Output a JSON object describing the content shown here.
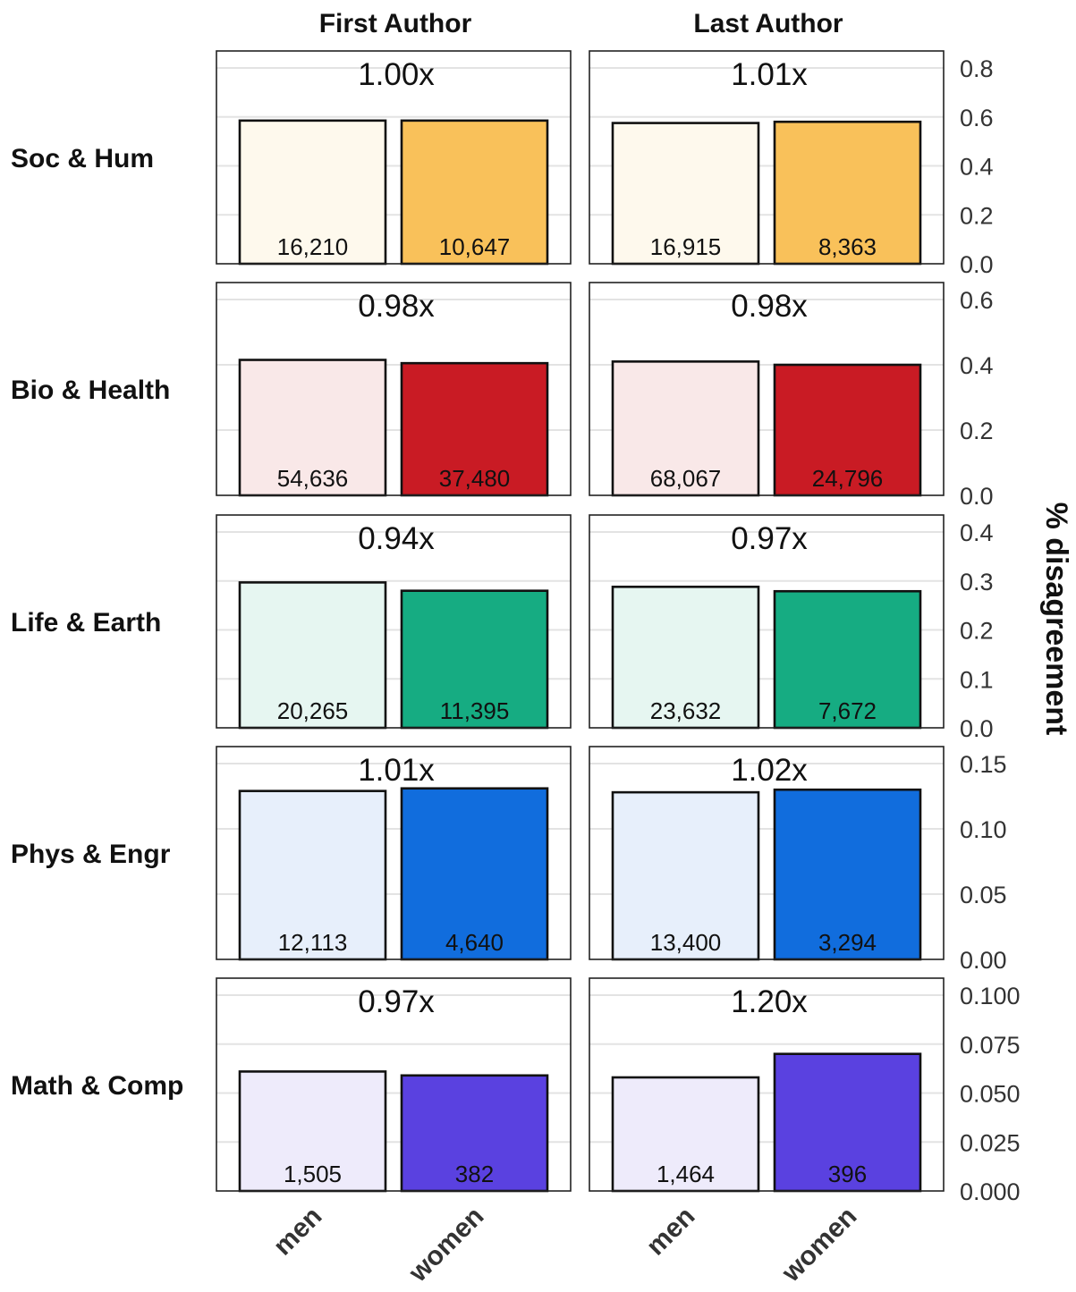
{
  "chart_data": {
    "type": "bar",
    "ylabel": "% disagreement",
    "columns": [
      "First Author",
      "Last Author"
    ],
    "categories": [
      "men",
      "women"
    ],
    "panels": [
      {
        "field": "Soc & Hum",
        "color": "#F9C15A",
        "light_color": "#FEF9ED",
        "ylim": [
          0,
          0.8
        ],
        "yticks": [
          "0.0",
          "0.2",
          "0.4",
          "0.6",
          "0.8"
        ],
        "cells": [
          {
            "column": "First Author",
            "ratio": "1.00x",
            "values": [
              0.585,
              0.585
            ],
            "counts": [
              "16,210",
              "10,647"
            ]
          },
          {
            "column": "Last Author",
            "ratio": "1.01x",
            "values": [
              0.575,
              0.58
            ],
            "counts": [
              "16,915",
              "8,363"
            ]
          }
        ]
      },
      {
        "field": "Bio & Health",
        "color": "#C91B24",
        "light_color": "#F9E8E8",
        "ylim": [
          0,
          0.6
        ],
        "yticks": [
          "0.0",
          "0.2",
          "0.4",
          "0.6"
        ],
        "cells": [
          {
            "column": "First Author",
            "ratio": "0.98x",
            "values": [
              0.415,
              0.405
            ],
            "counts": [
              "54,636",
              "37,480"
            ]
          },
          {
            "column": "Last Author",
            "ratio": "0.98x",
            "values": [
              0.41,
              0.4
            ],
            "counts": [
              "68,067",
              "24,796"
            ]
          }
        ]
      },
      {
        "field": "Life & Earth",
        "color": "#16AC82",
        "light_color": "#E6F6F1",
        "ylim": [
          0,
          0.4
        ],
        "yticks": [
          "0.0",
          "0.1",
          "0.2",
          "0.3",
          "0.4"
        ],
        "cells": [
          {
            "column": "First Author",
            "ratio": "0.94x",
            "values": [
              0.297,
              0.28
            ],
            "counts": [
              "20,265",
              "11,395"
            ]
          },
          {
            "column": "Last Author",
            "ratio": "0.97x",
            "values": [
              0.288,
              0.279
            ],
            "counts": [
              "23,632",
              "7,672"
            ]
          }
        ]
      },
      {
        "field": "Phys & Engr",
        "color": "#116DDD",
        "light_color": "#E7EFFB",
        "ylim": [
          0,
          0.15
        ],
        "yticks": [
          "0.00",
          "0.05",
          "0.10",
          "0.15"
        ],
        "cells": [
          {
            "column": "First Author",
            "ratio": "1.01x",
            "values": [
              0.129,
              0.131
            ],
            "counts": [
              "12,113",
              "4,640"
            ]
          },
          {
            "column": "Last Author",
            "ratio": "1.02x",
            "values": [
              0.128,
              0.13
            ],
            "counts": [
              "13,400",
              "3,294"
            ]
          }
        ]
      },
      {
        "field": "Math & Comp",
        "color": "#5A41E0",
        "light_color": "#EEEBFB",
        "ylim": [
          0,
          0.1
        ],
        "yticks": [
          "0.000",
          "0.025",
          "0.050",
          "0.075",
          "0.100"
        ],
        "cells": [
          {
            "column": "First Author",
            "ratio": "0.97x",
            "values": [
              0.061,
              0.059
            ],
            "counts": [
              "1,505",
              "382"
            ]
          },
          {
            "column": "Last Author",
            "ratio": "1.20x",
            "values": [
              0.058,
              0.07
            ],
            "counts": [
              "1,464",
              "396"
            ]
          }
        ]
      }
    ]
  }
}
